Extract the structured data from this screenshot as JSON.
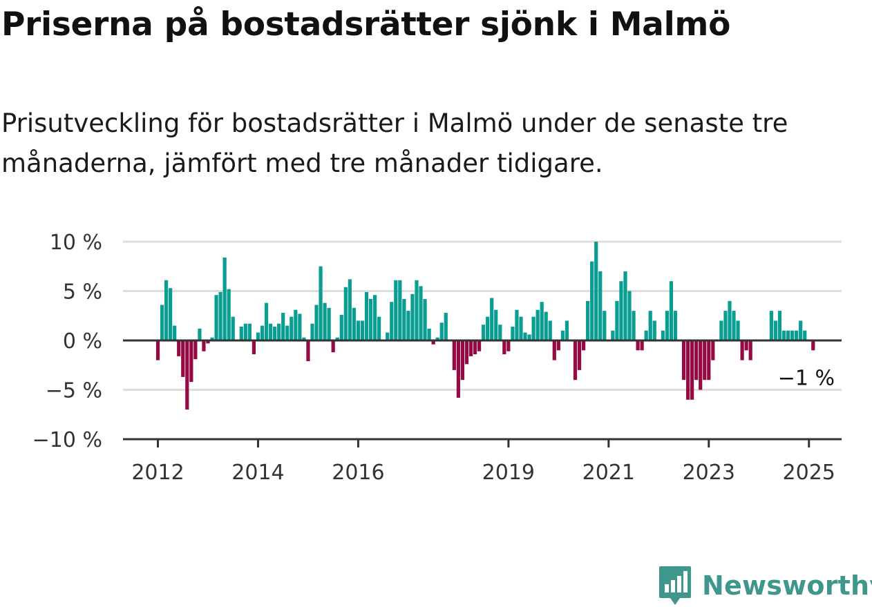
{
  "title": "Priserna på bostadsrätter sjönk i Malmö",
  "subtitle": "Prisutveckling för bostadsrätter i Malmö under de senaste tre månaderna, jämfört med tre månader tidigare.",
  "brand": {
    "name": "Newsworthy",
    "icon": "newsworthy-logo-icon"
  },
  "colors": {
    "positive": "#0a9d92",
    "negative": "#960a44",
    "grid": "#dddddd",
    "axis": "#333333",
    "brand": "#3e968c"
  },
  "chart_data": {
    "type": "bar",
    "title": "",
    "xlabel": "",
    "ylabel": "",
    "ylim": [
      -10,
      10
    ],
    "y_ticks": [
      {
        "value": 10,
        "label": "10 %"
      },
      {
        "value": 5,
        "label": "5 %"
      },
      {
        "value": 0,
        "label": "0 %"
      },
      {
        "value": -5,
        "label": "−5 %"
      },
      {
        "value": -10,
        "label": "−10 %"
      }
    ],
    "x_ticks": [
      {
        "year": 2012,
        "label": "2012"
      },
      {
        "year": 2014,
        "label": "2014"
      },
      {
        "year": 2016,
        "label": "2016"
      },
      {
        "year": 2019,
        "label": "2019"
      },
      {
        "year": 2021,
        "label": "2021"
      },
      {
        "year": 2023,
        "label": "2023"
      },
      {
        "year": 2025,
        "label": "2025"
      }
    ],
    "start": "2012-01",
    "grid": true,
    "annotation": {
      "label": "−1 %",
      "value": -1
    },
    "values": [
      -2,
      3.6,
      6.1,
      5.3,
      1.5,
      -1.6,
      -3.7,
      -7,
      -4.2,
      -1.9,
      1.2,
      -1.1,
      -0.3,
      0.3,
      4.6,
      4.9,
      8.4,
      5.2,
      2.4,
      0,
      1.4,
      1.7,
      1.7,
      -1.4,
      0.8,
      1.5,
      3.8,
      1.7,
      1.4,
      1.7,
      2.8,
      1.5,
      2.4,
      3.1,
      2.7,
      0.3,
      -2.1,
      1.7,
      3.6,
      7.5,
      3.8,
      3.3,
      -1.2,
      0.3,
      2.6,
      5.4,
      6.2,
      3.3,
      2,
      2,
      4.9,
      4.2,
      4.6,
      2.4,
      0,
      0.8,
      3.9,
      6.1,
      6.1,
      4.2,
      3,
      4.7,
      6.1,
      5.5,
      4.2,
      1.2,
      -0.4,
      0.3,
      1.8,
      2.8,
      0,
      -3,
      -5.8,
      -4,
      -2.4,
      -1.6,
      -1.4,
      -1.1,
      1.6,
      2.4,
      4.3,
      3.1,
      1.6,
      -1.4,
      -1.1,
      1.4,
      3.1,
      2.4,
      0.8,
      0.6,
      2.4,
      3.1,
      3.9,
      2.9,
      2,
      -2,
      -1,
      1,
      2,
      0,
      -4,
      -3,
      -1,
      4,
      8,
      10,
      7,
      3,
      0,
      1,
      4,
      6,
      7,
      5,
      3,
      -1,
      -1,
      1,
      3,
      2,
      0,
      1,
      3,
      6,
      3,
      0,
      -4,
      -6,
      -6,
      -4,
      -5,
      -4,
      -4,
      -2,
      0,
      2,
      3,
      4,
      3,
      2,
      -2,
      -1,
      -2,
      0,
      0,
      0,
      0,
      3,
      2,
      3,
      1,
      1,
      1,
      1,
      2,
      1,
      0,
      -1
    ]
  }
}
